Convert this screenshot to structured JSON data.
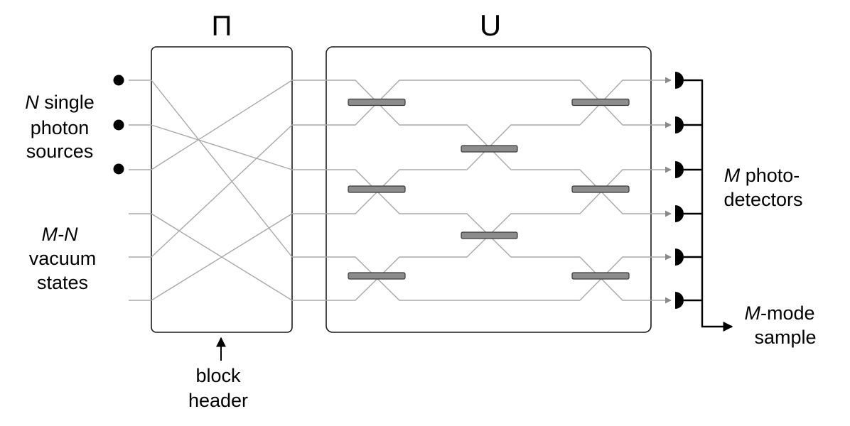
{
  "blocks": {
    "permutation": {
      "symbol": "Π"
    },
    "unitary": {
      "symbol": "U"
    }
  },
  "labels": {
    "sources": {
      "prefix": "N",
      "line1_rest": " single",
      "line2": "photon",
      "line3": "sources"
    },
    "vacuum": {
      "line1": "M-N",
      "line2": "vacuum",
      "line3": "states"
    },
    "detectors": {
      "prefix": "M",
      "line1_rest": " photo-",
      "line2": "detectors"
    },
    "sample": {
      "prefix": "M",
      "line1_rest": "-mode",
      "line2": "sample"
    },
    "header": {
      "line1": "block",
      "line2": "header"
    }
  },
  "counts": {
    "single_photon_sources": 3,
    "vacuum_inputs": 3,
    "modes": 6,
    "detectors": 6
  },
  "colors": {
    "wire": "#a9a9a9",
    "beamsplitter": "#8c8c8c",
    "ink": "#000000"
  }
}
